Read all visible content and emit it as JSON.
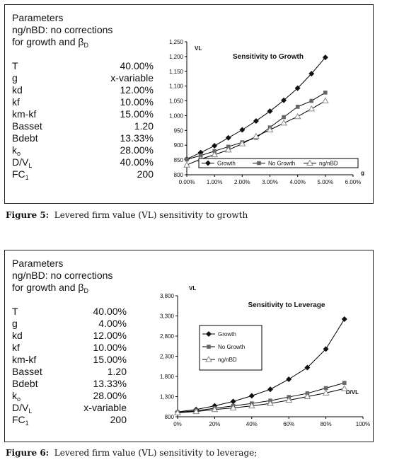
{
  "figures": [
    {
      "params_title": "Parameters",
      "params_note1": "ng/nBD: no corrections",
      "params_note2_prefix": "for growth and β",
      "params_note2_sub": "D",
      "params": [
        {
          "name": "T",
          "sub": "",
          "value": "40.00%"
        },
        {
          "name": "g",
          "sub": "",
          "value": "x-variable"
        },
        {
          "name": "kd",
          "sub": "",
          "value": "12.00%"
        },
        {
          "name": "kf",
          "sub": "",
          "value": "10.00%"
        },
        {
          "name": "km-kf",
          "sub": "",
          "value": "15.00%"
        },
        {
          "name": "Basset",
          "sub": "",
          "value": "1.20"
        },
        {
          "name": "Bdebt",
          "sub": "",
          "value": "13.33%"
        },
        {
          "name": "k",
          "sub": "o",
          "value": "28.00%"
        },
        {
          "name": "D/V",
          "sub": "L",
          "value": "40.00%"
        },
        {
          "name": "FC",
          "sub": "1",
          "value": "200"
        }
      ],
      "caption_label": "Figure 5:",
      "caption_text": "Levered firm value (VL) sensitivity to growth"
    },
    {
      "params_title": "Parameters",
      "params_note1": "ng/nBD: no corrections",
      "params_note2_prefix": "for growth and β",
      "params_note2_sub": "D",
      "params": [
        {
          "name": "T",
          "sub": "",
          "value": "40.00%"
        },
        {
          "name": "g",
          "sub": "",
          "value": "4.00%"
        },
        {
          "name": "kd",
          "sub": "",
          "value": "12.00%"
        },
        {
          "name": "kf",
          "sub": "",
          "value": "10.00%"
        },
        {
          "name": "km-kf",
          "sub": "",
          "value": "15.00%"
        },
        {
          "name": "Basset",
          "sub": "",
          "value": "1.20"
        },
        {
          "name": "Bdebt",
          "sub": "",
          "value": "13.33%"
        },
        {
          "name": "k",
          "sub": "o",
          "value": "28.00%"
        },
        {
          "name": "D/V",
          "sub": "L",
          "value": "x-variable"
        },
        {
          "name": "FC",
          "sub": "1",
          "value": "200"
        }
      ],
      "caption_label": "Figure 6:",
      "caption_text": "Levered firm value (VL) sensitivity to leverage;"
    }
  ],
  "colors": {
    "line": "#000000",
    "marker_growth": "#111111",
    "marker_nogrowth": "#666666",
    "marker_ng": "#888888"
  },
  "chart_data": [
    {
      "type": "line",
      "title": "Sensitivity to Growth",
      "xlabel": "g",
      "ylabel": "VL",
      "xlim": [
        0,
        6
      ],
      "ylim": [
        800,
        1250
      ],
      "xticks": [
        "0.00%",
        "1.00%",
        "2.00%",
        "3.00%",
        "4.00%",
        "5.00%",
        "6.00%"
      ],
      "yticks": [
        "800",
        "850",
        "900",
        "950",
        "1,000",
        "1,050",
        "1,100",
        "1,150",
        "1,200",
        "1,250"
      ],
      "x": [
        0,
        0.5,
        1.0,
        1.5,
        2.0,
        2.5,
        3.0,
        3.5,
        4.0,
        4.5,
        5.0
      ],
      "grid": false,
      "legend_position": "bottom",
      "series": [
        {
          "name": "Growth",
          "marker": "diamond",
          "values": [
            853,
            875,
            898,
            925,
            952,
            982,
            1015,
            1052,
            1093,
            1142,
            1197
          ]
        },
        {
          "name": "No Growth",
          "marker": "square",
          "values": [
            852,
            865,
            880,
            895,
            910,
            925,
            960,
            995,
            1030,
            1050,
            1078
          ]
        },
        {
          "name": "ng/nBD",
          "marker": "triangle",
          "values": [
            833,
            853,
            868,
            884,
            905,
            930,
            952,
            975,
            997,
            1023,
            1050
          ]
        }
      ]
    },
    {
      "type": "line",
      "title": "Sensitivity to Leverage",
      "xlabel": "D/VL",
      "ylabel": "VL",
      "xlim": [
        0,
        100
      ],
      "ylim": [
        800,
        3800
      ],
      "xticks": [
        "0%",
        "20%",
        "40%",
        "60%",
        "80%",
        "100%"
      ],
      "yticks": [
        "800",
        "1,300",
        "1,800",
        "2,300",
        "2,800",
        "3,300",
        "3,800"
      ],
      "x": [
        0,
        10,
        20,
        30,
        40,
        50,
        60,
        70,
        80,
        90
      ],
      "grid": false,
      "legend_position": "middle-left",
      "series": [
        {
          "name": "Growth",
          "marker": "diamond",
          "values": [
            920,
            980,
            1070,
            1180,
            1320,
            1480,
            1730,
            2020,
            2480,
            3220
          ]
        },
        {
          "name": "No Growth",
          "marker": "square",
          "values": [
            910,
            950,
            1010,
            1070,
            1130,
            1200,
            1290,
            1380,
            1510,
            1640
          ]
        },
        {
          "name": "ng/nBD",
          "marker": "triangle",
          "values": [
            900,
            930,
            980,
            1020,
            1070,
            1130,
            1210,
            1300,
            1390,
            1500
          ]
        }
      ]
    }
  ]
}
